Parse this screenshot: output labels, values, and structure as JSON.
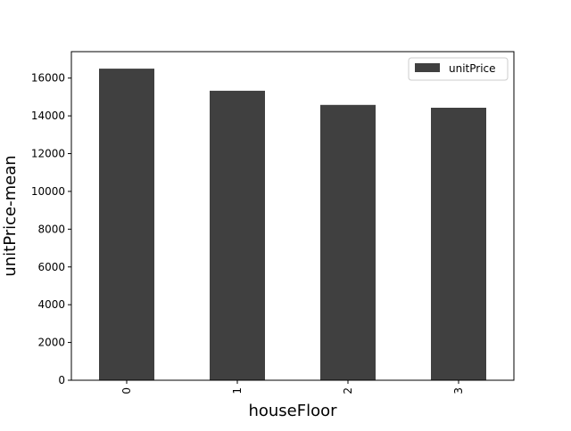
{
  "chart_data": {
    "type": "bar",
    "title": "",
    "xlabel": "houseFloor",
    "ylabel": "unitPrice-mean",
    "categories": [
      "0",
      "1",
      "2",
      "3"
    ],
    "series": [
      {
        "name": "unitPrice",
        "values": [
          16500,
          15330,
          14580,
          14430
        ],
        "color": "#404040"
      }
    ],
    "ylim": [
      0,
      17400
    ],
    "yticks": [
      0,
      2000,
      4000,
      6000,
      8000,
      10000,
      12000,
      14000,
      16000
    ],
    "grid": false,
    "legend": {
      "position": "top-right",
      "entries": [
        "unitPrice"
      ]
    },
    "x_tick_rotation": "vertical"
  }
}
